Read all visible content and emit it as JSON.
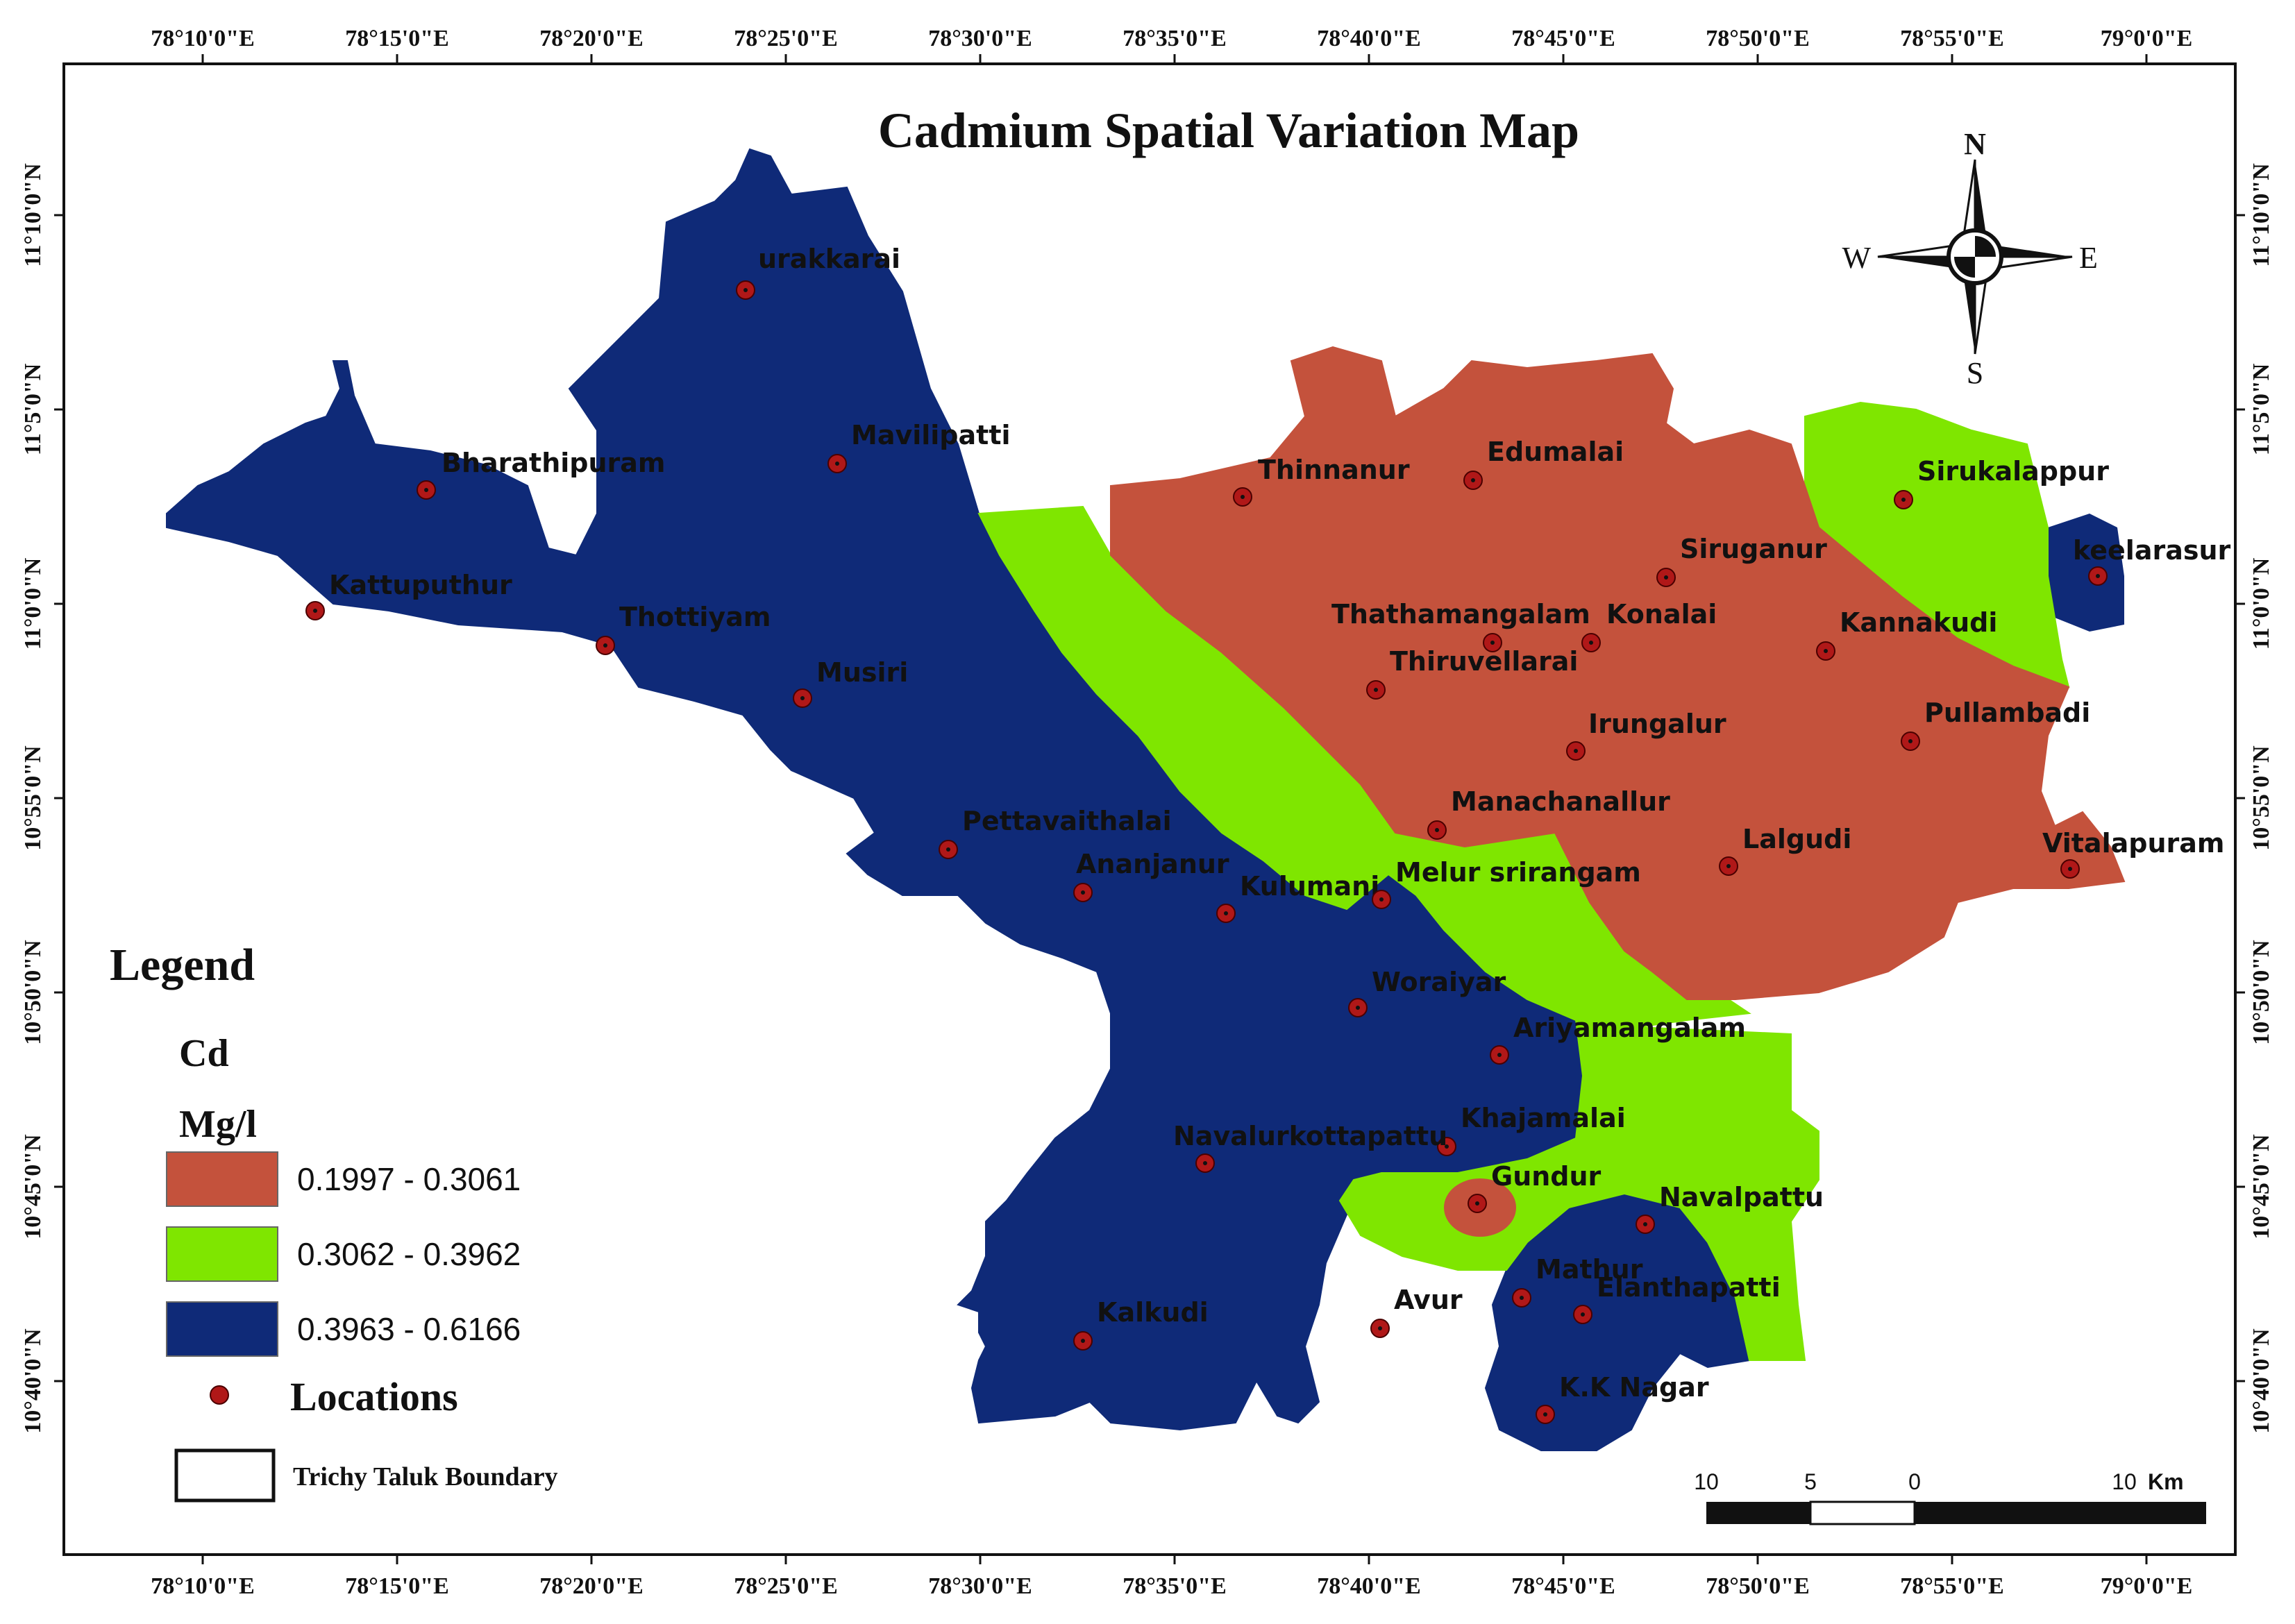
{
  "title": "Cadmium Spatial Variation Map",
  "axes": {
    "top_bottom_ticks": [
      "78°10'0\"E",
      "78°15'0\"E",
      "78°20'0\"E",
      "78°25'0\"E",
      "78°30'0\"E",
      "78°35'0\"E",
      "78°40'0\"E",
      "78°45'0\"E",
      "78°50'0\"E",
      "78°55'0\"E",
      "79°0'0\"E"
    ],
    "left_right_ticks": [
      "11°10'0\"N",
      "11°5'0\"N",
      "11°0'0\"N",
      "10°55'0\"N",
      "10°50'0\"N",
      "10°45'0\"N",
      "10°40'0\"N"
    ]
  },
  "compass": {
    "n": "N",
    "s": "S",
    "e": "E",
    "w": "W"
  },
  "legend": {
    "title": "Legend",
    "variable": "Cd",
    "unit": "Mg/l",
    "classes": [
      {
        "range": "0.1997 - 0.3061",
        "color": "#c4523c"
      },
      {
        "range": "0.3062 - 0.3962",
        "color": "#7fe600"
      },
      {
        "range": "0.3963 - 0.6166",
        "color": "#0f2a78"
      }
    ],
    "locations_label": "Locations",
    "boundary_label": "Trichy Taluk Boundary"
  },
  "scale_bar": {
    "labels": [
      "10",
      "5",
      "0",
      "10"
    ],
    "unit": "Km"
  },
  "locations": [
    "urakkarai",
    "Bharathipuram",
    "Mavilipatti",
    "Kattuputhur",
    "Thottiyam",
    "Musiri",
    "Thinnanur",
    "Edumalai",
    "Sirukalappur",
    "keelarasur",
    "Siruganur",
    "Thathamangalam",
    "Konalai",
    "Thiruvellarai",
    "Kannakudi",
    "Irungalur",
    "Pullambadi",
    "Manachanallur",
    "Lalgudi",
    "Vitalapuram",
    "Pettavaithalai",
    "Ananjanur",
    "Kulumani",
    "Melur srirangam",
    "Woraiyar",
    "Ariyamangalam",
    "Khajamalai",
    "Navalurkottapattu",
    "Gundur",
    "Navalpattu",
    "Mathur",
    "Elanthapatti",
    "Kalkudi",
    "Avur",
    "K.K Nagar"
  ]
}
